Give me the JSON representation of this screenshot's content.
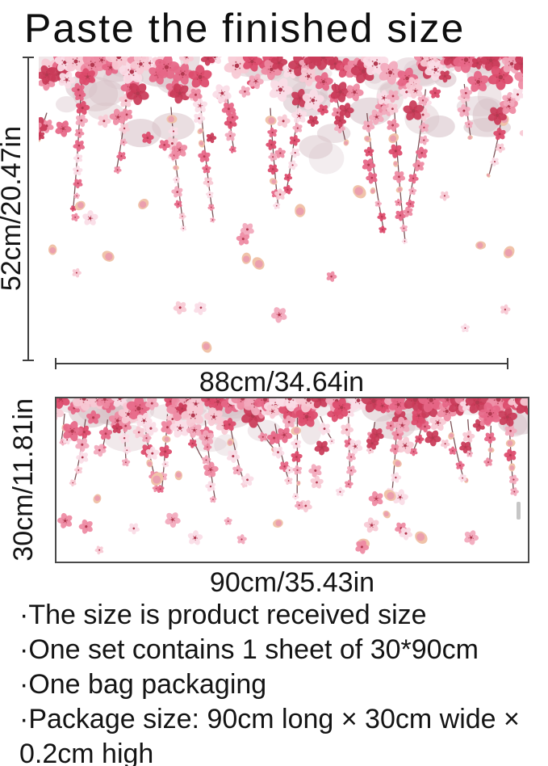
{
  "title": "Paste the finished size",
  "finished_size": {
    "height_label": "52cm/20.47in",
    "width_label": "88cm/34.64in"
  },
  "product_sheet": {
    "height_label": "30cm/11.81in",
    "width_label": "90cm/35.43in"
  },
  "notes": [
    "·The size is product received size",
    "·One set contains 1 sheet of 30*90cm",
    "·One bag packaging",
    "·Package size: 90cm long × 30cm wide × 0.2cm high"
  ],
  "artwork": {
    "description": "watercolor pink cherry blossom garland with hanging vines and falling petals",
    "palette": {
      "pinks": [
        "#fadde6",
        "#f7c9d4",
        "#f2a9bc",
        "#ee8aa2",
        "#e66686",
        "#dd4a6c"
      ],
      "deep": "#c93a58",
      "center": "#b23950",
      "branch": "#6f4046",
      "faded": "#d8c3c9",
      "bud_outer": "#f0c3a9",
      "bud_inner": "#eb9fae"
    }
  },
  "dimension_line_color": "#3f3f3f"
}
